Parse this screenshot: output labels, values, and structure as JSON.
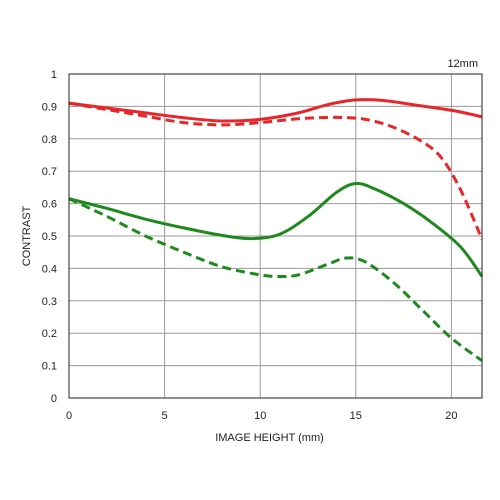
{
  "chart_data": {
    "type": "line",
    "focal_label": "12mm",
    "xlabel": "IMAGE HEIGHT (mm)",
    "ylabel": "CONTRAST",
    "xlim": [
      0,
      21.6
    ],
    "ylim": [
      0,
      1
    ],
    "x_ticks": [
      0,
      5,
      10,
      15,
      20
    ],
    "y_ticks": [
      0,
      0.1,
      0.2,
      0.3,
      0.4,
      0.5,
      0.6,
      0.7,
      0.8,
      0.9,
      1
    ],
    "grid": true,
    "legend": "none",
    "colors": {
      "red": "#e8262a",
      "green": "#1e8a1e",
      "grid": "#9a9a9a",
      "axis": "#222222"
    },
    "series": [
      {
        "color": "red",
        "dash": "solid",
        "points": [
          [
            0,
            0.91
          ],
          [
            2,
            0.895
          ],
          [
            4,
            0.88
          ],
          [
            6,
            0.865
          ],
          [
            8,
            0.855
          ],
          [
            10,
            0.86
          ],
          [
            12,
            0.88
          ],
          [
            13.5,
            0.905
          ],
          [
            15,
            0.92
          ],
          [
            16.5,
            0.918
          ],
          [
            18,
            0.905
          ],
          [
            20,
            0.888
          ],
          [
            21.6,
            0.868
          ]
        ]
      },
      {
        "color": "red",
        "dash": "dashed",
        "points": [
          [
            0,
            0.91
          ],
          [
            2,
            0.89
          ],
          [
            4,
            0.87
          ],
          [
            6,
            0.85
          ],
          [
            8,
            0.843
          ],
          [
            10,
            0.85
          ],
          [
            12,
            0.862
          ],
          [
            14,
            0.866
          ],
          [
            15.5,
            0.86
          ],
          [
            17,
            0.835
          ],
          [
            18.5,
            0.79
          ],
          [
            19.5,
            0.74
          ],
          [
            20.5,
            0.64
          ],
          [
            21.6,
            0.49
          ]
        ]
      },
      {
        "color": "green",
        "dash": "solid",
        "points": [
          [
            0,
            0.615
          ],
          [
            2,
            0.585
          ],
          [
            4,
            0.552
          ],
          [
            6,
            0.525
          ],
          [
            8,
            0.502
          ],
          [
            9.5,
            0.492
          ],
          [
            11,
            0.505
          ],
          [
            12.5,
            0.56
          ],
          [
            14,
            0.635
          ],
          [
            15,
            0.662
          ],
          [
            16,
            0.645
          ],
          [
            17.5,
            0.6
          ],
          [
            19,
            0.54
          ],
          [
            20.5,
            0.465
          ],
          [
            21.6,
            0.375
          ]
        ]
      },
      {
        "color": "green",
        "dash": "dashed",
        "points": [
          [
            0,
            0.615
          ],
          [
            2,
            0.56
          ],
          [
            4,
            0.5
          ],
          [
            6,
            0.45
          ],
          [
            8,
            0.405
          ],
          [
            10,
            0.38
          ],
          [
            11,
            0.375
          ],
          [
            12,
            0.38
          ],
          [
            13.5,
            0.412
          ],
          [
            14.5,
            0.432
          ],
          [
            15.5,
            0.42
          ],
          [
            17,
            0.355
          ],
          [
            18.5,
            0.27
          ],
          [
            20,
            0.185
          ],
          [
            21.6,
            0.115
          ]
        ]
      }
    ]
  }
}
